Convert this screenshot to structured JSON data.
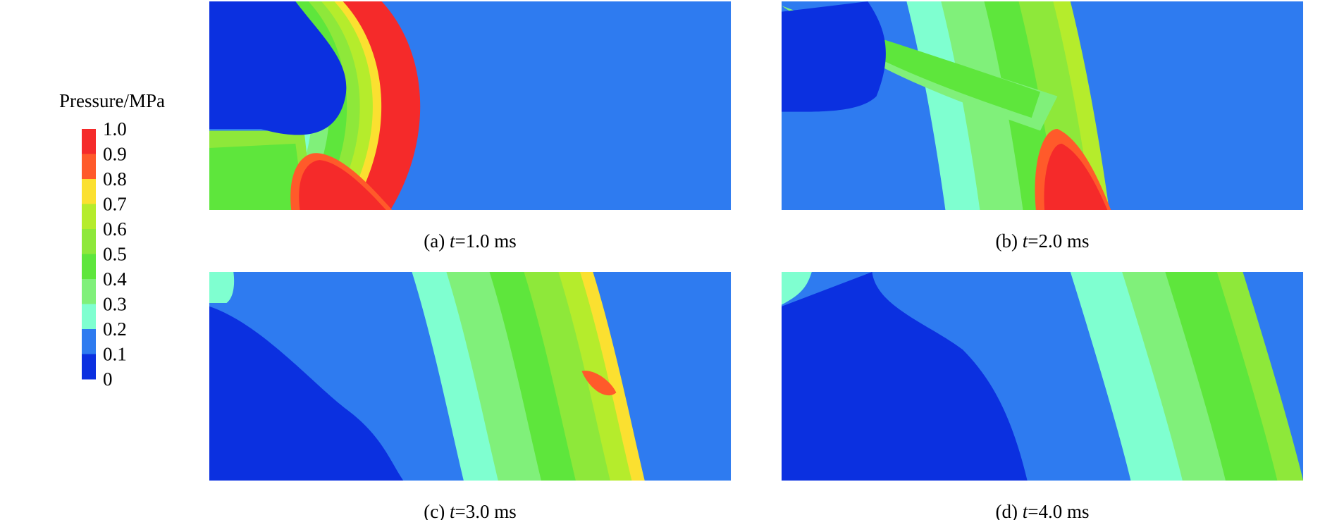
{
  "colorbar": {
    "title": "Pressure/MPa",
    "levels": [
      {
        "label": "1.0",
        "color": "#f52a2a"
      },
      {
        "label": "0.9",
        "color": "#ff5a2a"
      },
      {
        "label": "0.8",
        "color": "#fbe030"
      },
      {
        "label": "0.7",
        "color": "#b5ec2c"
      },
      {
        "label": "0.6",
        "color": "#8ee83a"
      },
      {
        "label": "0.5",
        "color": "#5ee63c"
      },
      {
        "label": "0.4",
        "color": "#80f07a"
      },
      {
        "label": "0.3",
        "color": "#7fffd0"
      },
      {
        "label": "0.2",
        "color": "#2e7bf0"
      },
      {
        "label": "0.1",
        "color": "#0b30e0"
      },
      {
        "label": "0"
      }
    ]
  },
  "panels": [
    {
      "prefix": "(a) ",
      "var": "t",
      "rest": "=1.0 ms"
    },
    {
      "prefix": "(b) ",
      "var": "t",
      "rest": "=2.0 ms"
    },
    {
      "prefix": "(c) ",
      "var": "t",
      "rest": "=3.0 ms"
    },
    {
      "prefix": "(d) ",
      "var": "t",
      "rest": "=4.0 ms"
    }
  ]
}
